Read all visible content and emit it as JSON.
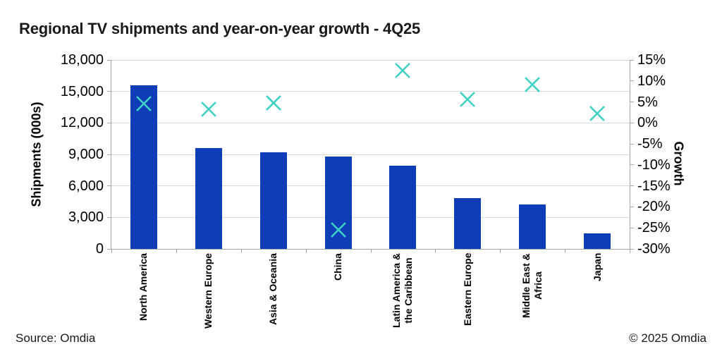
{
  "title": "Regional TV shipments and year-on-year growth - 4Q25",
  "footer": {
    "source": "Source: Omdia",
    "copyright": "© 2025 Omdia"
  },
  "chart_data": {
    "type": "bar",
    "title": "Regional TV shipments and year-on-year growth - 4Q25",
    "categories": [
      "North America",
      "Western Europe",
      "Asia & Oceania",
      "China",
      "Latin America &\nthe Caribbean",
      "Eastern Europe",
      "Middle East &\nAfrica",
      "Japan"
    ],
    "series": [
      {
        "name": "Shipments (000s)",
        "type": "bar",
        "axis": "left",
        "values": [
          15600,
          9600,
          9200,
          8800,
          7900,
          4850,
          4250,
          1480
        ]
      },
      {
        "name": "Growth",
        "type": "scatter",
        "marker": "x",
        "axis": "right",
        "values": [
          4.6,
          3.3,
          4.7,
          -25.5,
          12.5,
          5.6,
          9.2,
          2.3
        ]
      }
    ],
    "left_axis": {
      "label": "Shipments (000s)",
      "min": 0,
      "max": 18000,
      "step": 3000,
      "tick_labels": [
        "0",
        "3,000",
        "6,000",
        "9,000",
        "12,000",
        "15,000",
        "18,000"
      ]
    },
    "right_axis": {
      "label": "Growth",
      "min": -30,
      "max": 15,
      "step": 5,
      "tick_labels": [
        "-30%",
        "-25%",
        "-20%",
        "-15%",
        "-10%",
        "-5%",
        "0%",
        "5%",
        "10%",
        "15%"
      ]
    },
    "grid": true,
    "legend": "none",
    "colors": {
      "bar": "#0e3db8",
      "marker": "#3fd1c4",
      "gridline": "#d9d9d9",
      "axis_line": "#a6a6a6",
      "text": "#000000"
    }
  }
}
